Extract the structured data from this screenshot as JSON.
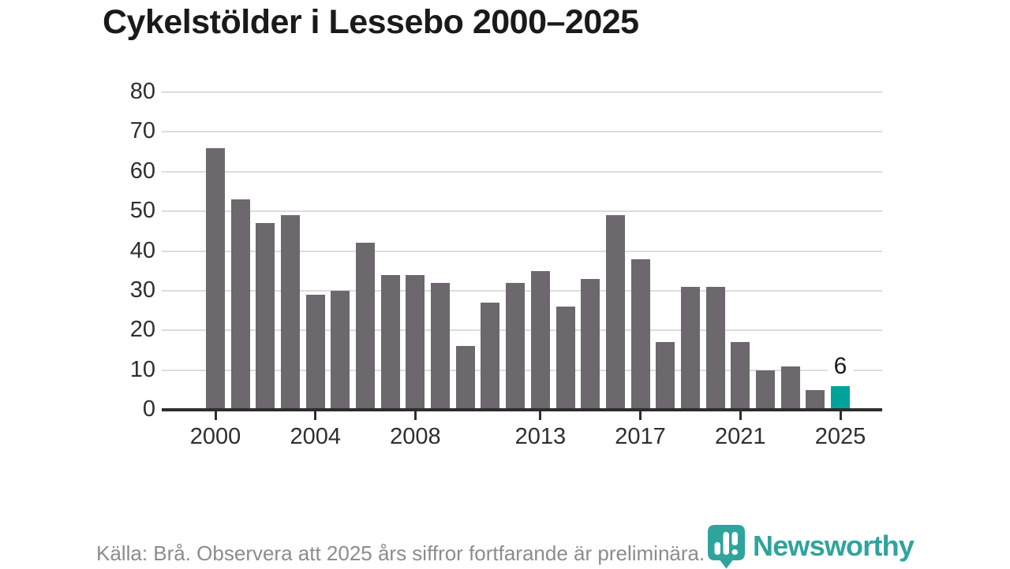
{
  "title": "Cykelstölder i Lessebo 2000–2025",
  "footer": {
    "source_note": "Källa: Brå. Observera att 2025 års siffror fortfarande är preliminära."
  },
  "logo": {
    "name": "Newsworthy",
    "icon": "newsworthy-badge-bar-chart-icon",
    "color": "#2ea49d"
  },
  "chart_data": {
    "type": "bar",
    "title": "Cykelstölder i Lessebo 2000–2025",
    "x": [
      2000,
      2001,
      2002,
      2003,
      2004,
      2005,
      2006,
      2007,
      2008,
      2009,
      2010,
      2011,
      2012,
      2013,
      2014,
      2015,
      2016,
      2017,
      2018,
      2019,
      2020,
      2021,
      2022,
      2023,
      2024,
      2025
    ],
    "values": [
      66,
      53,
      47,
      49,
      29,
      30,
      42,
      34,
      34,
      32,
      16,
      27,
      32,
      35,
      26,
      33,
      49,
      38,
      17,
      31,
      31,
      17,
      10,
      11,
      5,
      6
    ],
    "highlight_index": 25,
    "highlight_label": "6",
    "y_ticks": [
      0,
      10,
      20,
      30,
      40,
      50,
      60,
      70,
      80
    ],
    "ylim": [
      0,
      80
    ],
    "x_tick_years": [
      2000,
      2004,
      2008,
      2013,
      2017,
      2021,
      2025
    ],
    "x_tick_labels": [
      "2000",
      "2004",
      "2008",
      "2013",
      "2017",
      "2021",
      "2025"
    ],
    "grid": "horizontal",
    "legend": "none",
    "xlabel": "",
    "ylabel": "",
    "bar_color": "#6c686d",
    "highlight_color": "#00a39c",
    "grid_color": "#dcdcdc",
    "axis_color": "#2d2d2d"
  }
}
